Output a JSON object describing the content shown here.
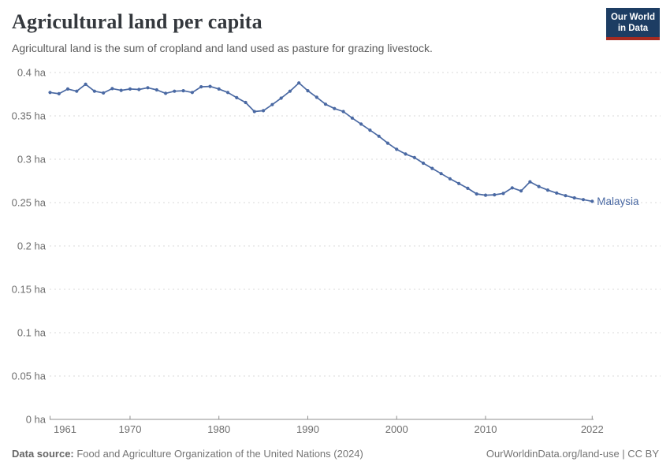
{
  "header": {
    "title": "Agricultural land per capita",
    "subtitle": "Agricultural land is the sum of cropland and land used as pasture for grazing livestock.",
    "logo_line1": "Our World",
    "logo_line2": "in Data"
  },
  "footer": {
    "source_label": "Data source:",
    "source_text": " Food and Agriculture Organization of the United Nations (2024)",
    "rights_text": "OurWorldinData.org/land-use | CC BY"
  },
  "chart_data": {
    "type": "line",
    "title": "Agricultural land per capita",
    "entity_label": "Malaysia",
    "unit": "ha",
    "x": [
      1961,
      1962,
      1963,
      1964,
      1965,
      1966,
      1967,
      1968,
      1969,
      1970,
      1971,
      1972,
      1973,
      1974,
      1975,
      1976,
      1977,
      1978,
      1979,
      1980,
      1981,
      1982,
      1983,
      1984,
      1985,
      1986,
      1987,
      1988,
      1989,
      1990,
      1991,
      1992,
      1993,
      1994,
      1995,
      1996,
      1997,
      1998,
      1999,
      2000,
      2001,
      2002,
      2003,
      2004,
      2005,
      2006,
      2007,
      2008,
      2009,
      2010,
      2011,
      2012,
      2013,
      2014,
      2015,
      2016,
      2017,
      2018,
      2019,
      2020,
      2021,
      2022
    ],
    "series": [
      {
        "name": "Malaysia",
        "values": [
          0.377,
          0.3755,
          0.381,
          0.3785,
          0.3865,
          0.3785,
          0.3765,
          0.3815,
          0.3795,
          0.381,
          0.3805,
          0.3825,
          0.38,
          0.376,
          0.3785,
          0.379,
          0.377,
          0.3835,
          0.384,
          0.381,
          0.377,
          0.371,
          0.3655,
          0.355,
          0.356,
          0.363,
          0.3705,
          0.3785,
          0.388,
          0.379,
          0.3715,
          0.3635,
          0.3585,
          0.355,
          0.3475,
          0.3405,
          0.3335,
          0.3265,
          0.3185,
          0.3115,
          0.306,
          0.302,
          0.2955,
          0.2895,
          0.2835,
          0.2775,
          0.272,
          0.2665,
          0.26,
          0.2585,
          0.259,
          0.2605,
          0.267,
          0.2635,
          0.274,
          0.2685,
          0.2645,
          0.261,
          0.258,
          0.2555,
          0.2535,
          0.2515
        ]
      }
    ],
    "xlim": [
      1961,
      2022
    ],
    "ylim": [
      0,
      0.4
    ],
    "xticks": [
      1961,
      1970,
      1980,
      1990,
      2000,
      2010,
      2022
    ],
    "yticks": [
      0,
      0.05,
      0.1,
      0.15,
      0.2,
      0.25,
      0.3,
      0.35,
      0.4
    ],
    "ytick_labels": [
      "0 ha",
      "0.05 ha",
      "0.1 ha",
      "0.15 ha",
      "0.2 ha",
      "0.25 ha",
      "0.3 ha",
      "0.35 ha",
      "0.4 ha"
    ],
    "grid": "horizontal-dashed",
    "legend_position": "end-of-line",
    "line_color": "#4a69a3",
    "grid_color": "#d9d9d9",
    "axis_color": "#8f8f8f",
    "tick_label_color": "#6e6e6e"
  }
}
